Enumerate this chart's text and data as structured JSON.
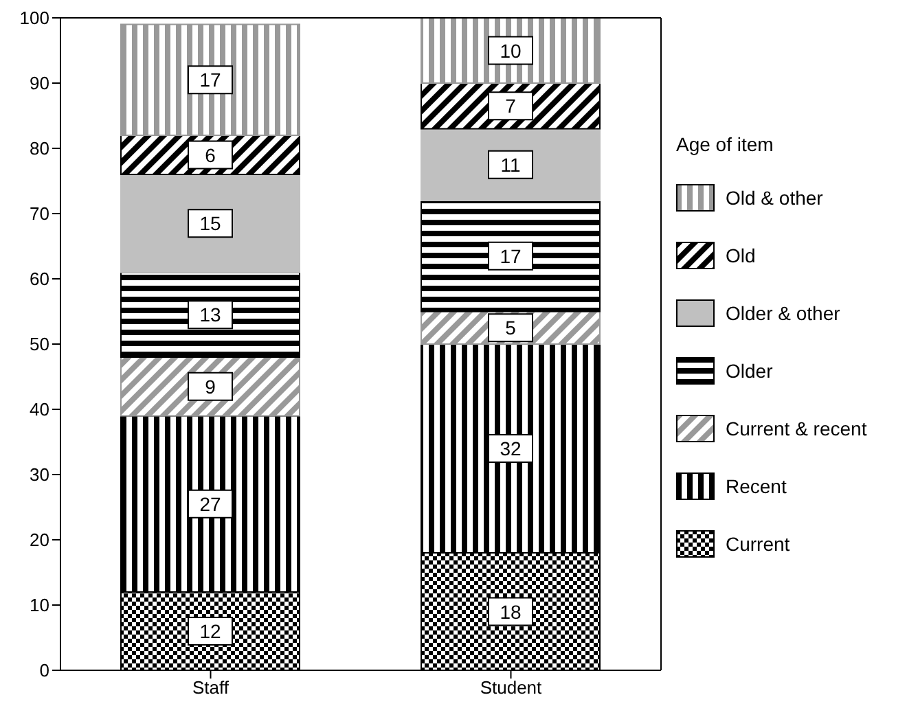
{
  "chart_data": {
    "type": "bar",
    "stacked": true,
    "categories": [
      "Staff",
      "Student"
    ],
    "legend_title": "Age of item",
    "legend": "right",
    "data_labels": true,
    "grid": false,
    "ylim": [
      0,
      100
    ],
    "yticks": [
      0,
      10,
      20,
      30,
      40,
      50,
      60,
      70,
      80,
      90,
      100
    ],
    "series": [
      {
        "name": "Current",
        "color": "#000000",
        "values": [
          12,
          18
        ]
      },
      {
        "name": "Recent",
        "color": "#000000",
        "values": [
          27,
          32
        ]
      },
      {
        "name": "Current & recent",
        "color": "#999999",
        "values": [
          9,
          5
        ]
      },
      {
        "name": "Older",
        "color": "#000000",
        "values": [
          13,
          17
        ]
      },
      {
        "name": "Older & other",
        "color": "#c0c0c0",
        "values": [
          15,
          11
        ]
      },
      {
        "name": "Old",
        "color": "#000000",
        "values": [
          6,
          7
        ]
      },
      {
        "name": "Old & other",
        "color": "#999999",
        "values": [
          17,
          10
        ]
      }
    ]
  }
}
